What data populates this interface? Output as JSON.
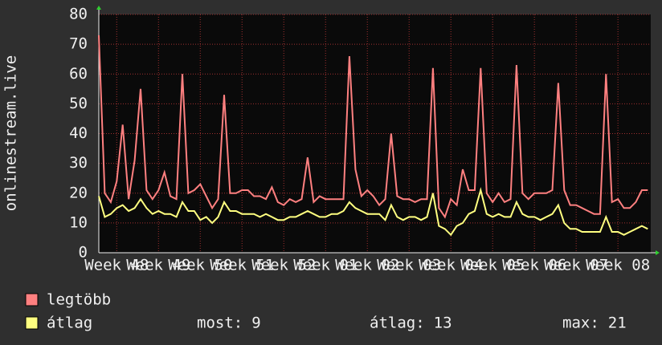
{
  "chart_data": {
    "type": "line",
    "y_label": "onlinestream.live",
    "x": [
      0,
      1,
      2,
      3,
      4,
      5,
      6,
      7,
      8,
      9,
      10,
      11,
      12,
      13,
      14,
      15,
      16,
      17,
      18,
      19,
      20,
      21,
      22,
      23,
      24,
      25,
      26,
      27,
      28,
      29,
      30,
      31,
      32,
      33,
      34,
      35,
      36,
      37,
      38,
      39,
      40,
      41,
      42,
      43,
      44,
      45,
      46,
      47,
      48,
      49,
      50,
      51,
      52,
      53,
      54,
      55,
      56,
      57,
      58,
      59,
      60,
      61,
      62,
      63,
      64,
      65,
      66,
      67,
      68,
      69,
      70,
      71,
      72,
      73,
      74,
      75,
      76,
      77,
      78,
      79,
      80,
      81,
      82,
      83,
      84,
      85,
      86,
      87,
      88,
      89,
      90,
      91,
      92
    ],
    "series": [
      {
        "name": "legtöbb",
        "color": "#ff8080",
        "values": [
          73,
          20,
          17,
          24,
          43,
          18,
          31,
          55,
          21,
          18,
          21,
          27,
          19,
          18,
          60,
          20,
          21,
          23,
          19,
          15,
          18,
          53,
          20,
          20,
          21,
          21,
          19,
          19,
          18,
          22,
          17,
          16,
          18,
          17,
          18,
          32,
          17,
          19,
          18,
          18,
          18,
          18,
          66,
          28,
          19,
          21,
          19,
          16,
          18,
          40,
          19,
          18,
          18,
          17,
          18,
          18,
          62,
          15,
          12,
          18,
          16,
          28,
          21,
          21,
          62,
          20,
          17,
          20,
          17,
          18,
          63,
          20,
          18,
          20,
          20,
          20,
          21,
          57,
          21,
          16,
          16,
          15,
          14,
          13,
          13,
          60,
          17,
          18,
          15,
          15,
          17,
          21,
          21
        ]
      },
      {
        "name": "átlag",
        "color": "#ffff80",
        "values": [
          19,
          12,
          13,
          15,
          16,
          14,
          15,
          18,
          15,
          13,
          14,
          13,
          13,
          12,
          17,
          14,
          14,
          11,
          12,
          10,
          12,
          17,
          14,
          14,
          13,
          13,
          13,
          12,
          13,
          12,
          11,
          11,
          12,
          12,
          13,
          14,
          13,
          12,
          12,
          13,
          13,
          14,
          17,
          15,
          14,
          13,
          13,
          13,
          11,
          16,
          12,
          11,
          12,
          12,
          11,
          12,
          20,
          9,
          8,
          6,
          9,
          10,
          13,
          14,
          21,
          13,
          12,
          13,
          12,
          12,
          17,
          13,
          12,
          12,
          11,
          12,
          13,
          16,
          10,
          8,
          8,
          7,
          7,
          7,
          7,
          12,
          7,
          7,
          6,
          7,
          8,
          9,
          8
        ]
      }
    ],
    "xlim": [
      0,
      92.5
    ],
    "xticks": [
      {
        "value": 3,
        "label": "Week 48"
      },
      {
        "value": 10,
        "label": "Week 49"
      },
      {
        "value": 17,
        "label": "Week 50"
      },
      {
        "value": 24,
        "label": "Week 51"
      },
      {
        "value": 31,
        "label": "Week 52"
      },
      {
        "value": 38,
        "label": "Week 01"
      },
      {
        "value": 45,
        "label": "Week 02"
      },
      {
        "value": 52,
        "label": "Week 03"
      },
      {
        "value": 59,
        "label": "Week 04"
      },
      {
        "value": 66,
        "label": "Week 05"
      },
      {
        "value": 73,
        "label": "Week 06"
      },
      {
        "value": 80,
        "label": "Week 07"
      },
      {
        "value": 87,
        "label": "Week 08"
      }
    ],
    "ylim": [
      0,
      80
    ],
    "yticks": [
      0,
      10,
      20,
      30,
      40,
      50,
      60,
      70,
      80
    ],
    "grid": true,
    "stats": [
      {
        "label": "most:",
        "value": 9
      },
      {
        "label": "átlag:",
        "value": 13
      },
      {
        "label": "max:",
        "value": 21
      }
    ]
  }
}
